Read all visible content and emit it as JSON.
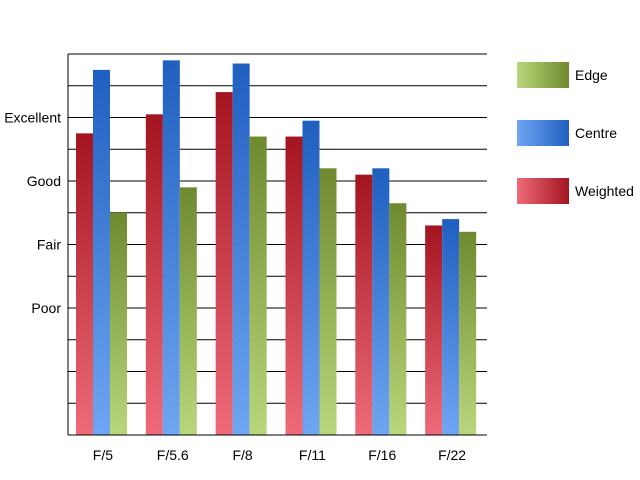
{
  "colors": {
    "Weighted": {
      "light": "#ef6b7a",
      "dark": "#a3141f"
    },
    "Centre": {
      "light": "#6fa6f2",
      "dark": "#1f5fbf"
    },
    "Edge": {
      "light": "#b9d77a",
      "dark": "#6f8a2e"
    },
    "grid": "#000000",
    "axis": "#000000"
  },
  "chart_data": {
    "type": "bar",
    "categories": [
      "F/5",
      "F/5.6",
      "F/8",
      "F/11",
      "F/16",
      "F/22"
    ],
    "series": [
      {
        "name": "Weighted",
        "values": [
          3.75,
          4.05,
          4.4,
          3.7,
          3.1,
          2.3
        ]
      },
      {
        "name": "Centre",
        "values": [
          4.75,
          4.9,
          4.85,
          3.95,
          3.2,
          2.4
        ]
      },
      {
        "name": "Edge",
        "values": [
          2.5,
          2.9,
          3.7,
          3.2,
          2.65,
          2.2
        ]
      }
    ],
    "yticks": [
      {
        "value": 1,
        "label": "Poor"
      },
      {
        "value": 2,
        "label": "Fair"
      },
      {
        "value": 3,
        "label": "Good"
      },
      {
        "value": 4,
        "label": "Excellent"
      }
    ],
    "ylim": [
      -1,
      5
    ],
    "grid_step": 0.5,
    "legend_order": [
      "Edge",
      "Centre",
      "Weighted"
    ],
    "legend_position": "right",
    "grid": true,
    "title": "",
    "xlabel": "",
    "ylabel": ""
  }
}
